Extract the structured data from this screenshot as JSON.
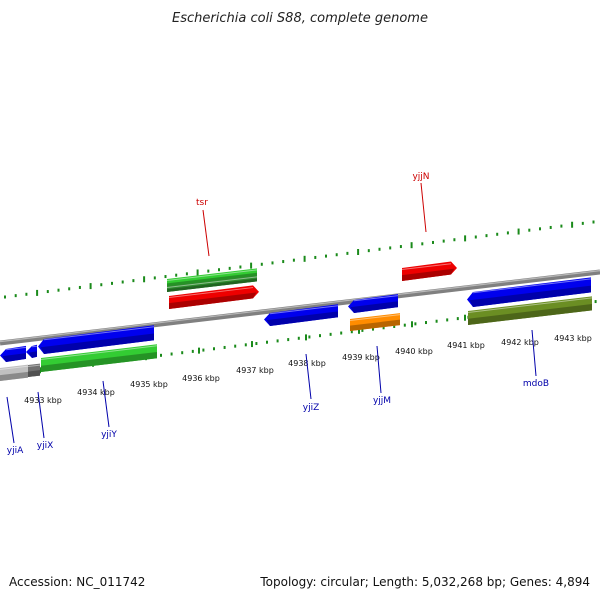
{
  "title": "Escherichia coli S88, complete genome",
  "footer": {
    "accession": "Accession: NC_011742",
    "summary": "Topology: circular; Length: 5,032,268 bp; Genes: 4,894"
  },
  "colors": {
    "backbone": "#808080",
    "tick": "#1a8a1a",
    "forward_label": "#cc0000",
    "reverse_label": "#0000aa",
    "blue": "#0000ee",
    "red": "#ee0000",
    "green": "#33cc33",
    "orange": "#ff8c00",
    "olive": "#6b8e23",
    "gray": "#c0c0c0"
  },
  "scale": {
    "labels": [
      "4933 kbp",
      "4934 kbp",
      "4935 kbp",
      "4936 kbp",
      "4937 kbp",
      "4938 kbp",
      "4939 kbp",
      "4940 kbp",
      "4941 kbp",
      "4942 kbp",
      "4943 kbp"
    ]
  },
  "labels": {
    "tsr": "tsr",
    "yjjN": "yjjN",
    "yjiA": "yjiA",
    "yjiX": "yjiX",
    "yjiY": "yjiY",
    "yjiZ": "yjiZ",
    "yjjM": "yjjM",
    "mdoB": "mdoB"
  }
}
